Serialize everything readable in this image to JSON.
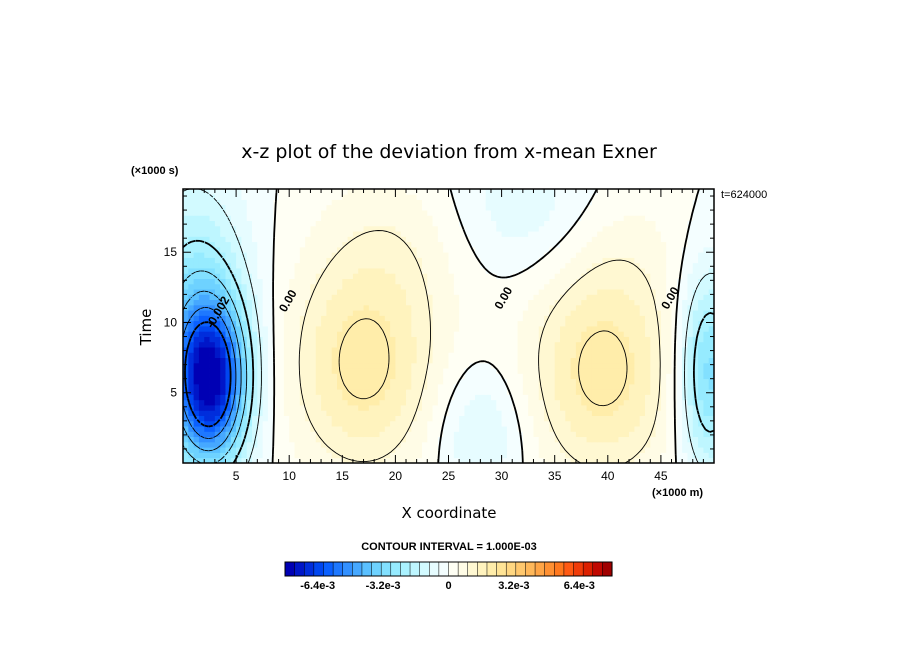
{
  "chart_data": {
    "type": "heatmap",
    "title": "x-z plot of the deviation from x-mean Exner",
    "xlabel": "X coordinate",
    "ylabel": "Time",
    "x_unit": "(×1000 m)",
    "y_unit": "(×1000 s)",
    "time_label": "t=624000",
    "xlim": [
      0,
      50
    ],
    "ylim": [
      0,
      19.5
    ],
    "x_ticks": [
      5,
      10,
      15,
      20,
      25,
      30,
      35,
      40,
      45
    ],
    "y_ticks": [
      5,
      10,
      15
    ],
    "contour_interval_text": "CONTOUR INTERVAL = 1.000E-03",
    "contour_labels": [
      {
        "text": "-0.002",
        "x": 3.6,
        "y": 10.6
      },
      {
        "text": "0.00",
        "x": 10.2,
        "y": 11.4
      },
      {
        "text": "0.00",
        "x": 30.5,
        "y": 11.6
      },
      {
        "text": "0.00",
        "x": 46.2,
        "y": 11.6
      }
    ],
    "colorbar": {
      "min": -0.008,
      "max": 0.008,
      "n_levels": 34,
      "tick_labels": [
        {
          "text": "-6.4e-3",
          "value": -0.0064
        },
        {
          "text": "-3.2e-3",
          "value": -0.0032
        },
        {
          "text": "0",
          "value": 0
        },
        {
          "text": "3.2e-3",
          "value": 0.0032
        },
        {
          "text": "6.4e-3",
          "value": 0.0064
        }
      ]
    },
    "field_features": [
      {
        "x": 2.6,
        "y": 5.8,
        "sx": 2.4,
        "sy": 4.0,
        "amp": -0.0065
      },
      {
        "x": 1.0,
        "y": 10.0,
        "sx": 3.6,
        "sy": 7.0,
        "amp": -0.0025
      },
      {
        "x": 49.5,
        "y": 6.5,
        "sx": 2.0,
        "sy": 5.0,
        "amp": -0.0032
      },
      {
        "x": 28.0,
        "y": 2.2,
        "sx": 3.0,
        "sy": 3.4,
        "amp": -0.0011
      },
      {
        "x": 32.5,
        "y": 17.8,
        "sx": 7.0,
        "sy": 3.8,
        "amp": -0.0011
      },
      {
        "x": 17.0,
        "y": 7.0,
        "sx": 5.0,
        "sy": 5.5,
        "amp": 0.0022
      },
      {
        "x": 39.5,
        "y": 6.5,
        "sx": 5.0,
        "sy": 5.5,
        "amp": 0.0022
      },
      {
        "x": 22.0,
        "y": 16.5,
        "sx": 6.0,
        "sy": 4.0,
        "amp": 0.0008
      },
      {
        "x": 40.5,
        "y": 16.5,
        "sx": 5.0,
        "sy": 4.0,
        "amp": 0.0007
      }
    ]
  },
  "colors": {
    "colorbar_levels": [
      "#0000b4",
      "#0016c8",
      "#002ddc",
      "#0046f0",
      "#0a60ff",
      "#1e78ff",
      "#3290ff",
      "#46a8ff",
      "#5ac0ff",
      "#6ed2ff",
      "#82e0ff",
      "#96ebff",
      "#aaf2ff",
      "#bef6ff",
      "#d2faff",
      "#e6fcff",
      "#f4feff",
      "#fffff4",
      "#fffce6",
      "#fff8d2",
      "#fff3be",
      "#ffedaa",
      "#ffe496",
      "#ffd782",
      "#ffc86e",
      "#ffb85a",
      "#ffa546",
      "#ff9032",
      "#ff781e",
      "#ff5a14",
      "#f03c0a",
      "#dc2000",
      "#c00800",
      "#a00000"
    ]
  }
}
